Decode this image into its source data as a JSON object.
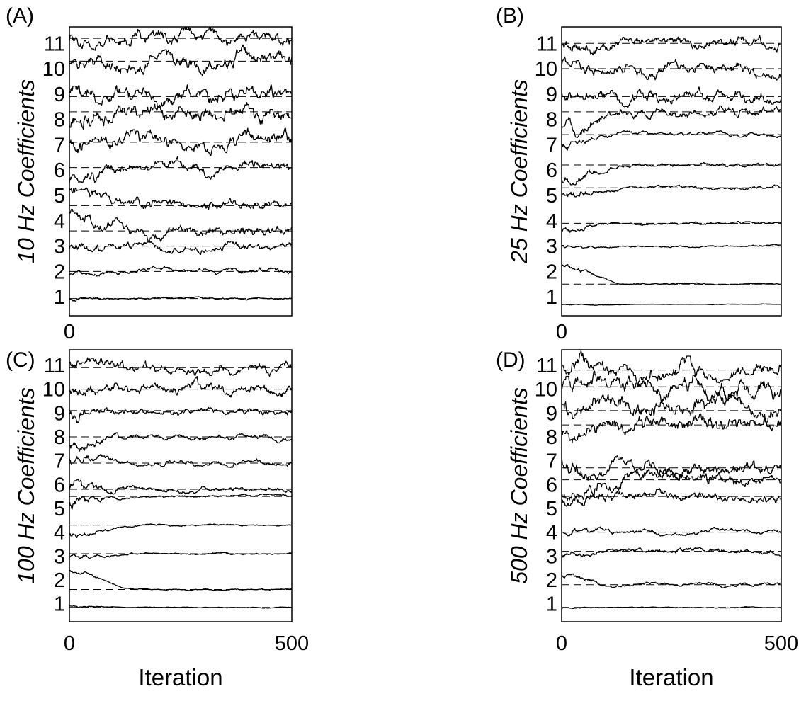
{
  "chart_data": [
    {
      "panel": "(A)",
      "type": "line",
      "ylabel": "10 Hz Coefficients",
      "xlabel": "",
      "xticks": [
        "0"
      ],
      "xlim": [
        0,
        500
      ],
      "yticks": [
        "1",
        "2",
        "3",
        "4",
        "5",
        "6",
        "7",
        "8",
        "9",
        "10",
        "11"
      ],
      "grid": false,
      "series": [
        {
          "label": "1",
          "ref": 0.93,
          "start": 0.9,
          "noise": 0.07,
          "eq_noise": 0.04
        },
        {
          "label": "2",
          "ref": 2.0,
          "start": 1.9,
          "noise": 0.12,
          "eq_noise": 0.1
        },
        {
          "label": "3",
          "ref": 3.0,
          "start": 2.9,
          "noise": 0.2,
          "eq_noise": 0.17
        },
        {
          "label": "4",
          "ref": 3.6,
          "start": 4.3,
          "noise": 0.28,
          "eq_noise": 0.24
        },
        {
          "label": "5",
          "ref": 4.6,
          "start": 5.4,
          "noise": 0.3,
          "eq_noise": 0.22
        },
        {
          "label": "6",
          "ref": 6.1,
          "start": 5.5,
          "noise": 0.35,
          "eq_noise": 0.25
        },
        {
          "label": "7",
          "ref": 7.1,
          "start": 7.0,
          "noise": 0.35,
          "eq_noise": 0.32
        },
        {
          "label": "8",
          "ref": 8.3,
          "start": 7.9,
          "noise": 0.4,
          "eq_noise": 0.35
        },
        {
          "label": "9",
          "ref": 8.9,
          "start": 9.1,
          "noise": 0.35,
          "eq_noise": 0.33
        },
        {
          "label": "10",
          "ref": 10.3,
          "start": 10.1,
          "noise": 0.35,
          "eq_noise": 0.32
        },
        {
          "label": "11",
          "ref": 11.2,
          "start": 11.1,
          "noise": 0.3,
          "eq_noise": 0.28
        }
      ]
    },
    {
      "panel": "(B)",
      "type": "line",
      "ylabel": "25 Hz Coefficients",
      "xlabel": "",
      "xticks": [
        "0"
      ],
      "xlim": [
        0,
        500
      ],
      "yticks": [
        "1",
        "2",
        "3",
        "4",
        "5",
        "6",
        "7",
        "8",
        "9",
        "10",
        "11"
      ],
      "grid": false,
      "series": [
        {
          "label": "1",
          "ref": 0.7,
          "start": 0.7,
          "noise": 0.03,
          "eq_noise": 0.01
        },
        {
          "label": "2",
          "ref": 1.5,
          "start": 2.2,
          "noise": 0.15,
          "eq_noise": 0.03
        },
        {
          "label": "3",
          "ref": 3.0,
          "start": 3.0,
          "noise": 0.1,
          "eq_noise": 0.04
        },
        {
          "label": "4",
          "ref": 3.9,
          "start": 3.6,
          "noise": 0.15,
          "eq_noise": 0.05
        },
        {
          "label": "5",
          "ref": 5.3,
          "start": 5.1,
          "noise": 0.25,
          "eq_noise": 0.07
        },
        {
          "label": "6",
          "ref": 6.2,
          "start": 5.6,
          "noise": 0.25,
          "eq_noise": 0.08
        },
        {
          "label": "7",
          "ref": 7.4,
          "start": 7.0,
          "noise": 0.2,
          "eq_noise": 0.08
        },
        {
          "label": "8",
          "ref": 8.3,
          "start": 7.7,
          "noise": 0.3,
          "eq_noise": 0.2
        },
        {
          "label": "9",
          "ref": 8.9,
          "start": 9.0,
          "noise": 0.3,
          "eq_noise": 0.25
        },
        {
          "label": "10",
          "ref": 10.0,
          "start": 10.0,
          "noise": 0.3,
          "eq_noise": 0.25
        },
        {
          "label": "11",
          "ref": 11.0,
          "start": 11.0,
          "noise": 0.3,
          "eq_noise": 0.25
        }
      ]
    },
    {
      "panel": "(C)",
      "type": "line",
      "ylabel": "100 Hz Coefficients",
      "xlabel": "Iteration",
      "xticks": [
        "0",
        "500"
      ],
      "xlim": [
        0,
        500
      ],
      "yticks": [
        "1",
        "2",
        "3",
        "4",
        "5",
        "6",
        "7",
        "8",
        "9",
        "10",
        "11"
      ],
      "grid": false,
      "series": [
        {
          "label": "1",
          "ref": 0.85,
          "start": 0.9,
          "noise": 0.04,
          "eq_noise": 0.02
        },
        {
          "label": "2",
          "ref": 1.6,
          "start": 2.4,
          "noise": 0.1,
          "eq_noise": 0.03
        },
        {
          "label": "3",
          "ref": 3.1,
          "start": 3.0,
          "noise": 0.12,
          "eq_noise": 0.04
        },
        {
          "label": "4",
          "ref": 4.3,
          "start": 3.9,
          "noise": 0.2,
          "eq_noise": 0.04
        },
        {
          "label": "5",
          "ref": 5.5,
          "start": 5.2,
          "noise": 0.3,
          "eq_noise": 0.05
        },
        {
          "label": "6",
          "ref": 5.8,
          "start": 5.9,
          "noise": 0.3,
          "eq_noise": 0.12
        },
        {
          "label": "7",
          "ref": 6.9,
          "start": 7.1,
          "noise": 0.25,
          "eq_noise": 0.12
        },
        {
          "label": "8",
          "ref": 8.0,
          "start": 7.6,
          "noise": 0.3,
          "eq_noise": 0.12
        },
        {
          "label": "9",
          "ref": 9.1,
          "start": 9.0,
          "noise": 0.3,
          "eq_noise": 0.15
        },
        {
          "label": "10",
          "ref": 10.0,
          "start": 10.0,
          "noise": 0.35,
          "eq_noise": 0.25
        },
        {
          "label": "11",
          "ref": 10.9,
          "start": 11.1,
          "noise": 0.3,
          "eq_noise": 0.25
        }
      ]
    },
    {
      "panel": "(D)",
      "type": "line",
      "ylabel": "500 Hz Coefficients",
      "xlabel": "Iteration",
      "xticks": [
        "0",
        "500"
      ],
      "xlim": [
        0,
        500
      ],
      "yticks": [
        "1",
        "2",
        "3",
        "4",
        "5",
        "6",
        "7",
        "8",
        "9",
        "10",
        "11"
      ],
      "grid": false,
      "series": [
        {
          "label": "1",
          "ref": 0.85,
          "start": 0.8,
          "noise": 0.04,
          "eq_noise": 0.02
        },
        {
          "label": "2",
          "ref": 1.8,
          "start": 2.2,
          "noise": 0.12,
          "eq_noise": 0.08
        },
        {
          "label": "3",
          "ref": 3.2,
          "start": 3.1,
          "noise": 0.15,
          "eq_noise": 0.12
        },
        {
          "label": "4",
          "ref": 4.0,
          "start": 4.0,
          "noise": 0.15,
          "eq_noise": 0.1
        },
        {
          "label": "5",
          "ref": 5.5,
          "start": 5.2,
          "noise": 0.35,
          "eq_noise": 0.22
        },
        {
          "label": "6",
          "ref": 6.2,
          "start": 5.7,
          "noise": 0.35,
          "eq_noise": 0.28
        },
        {
          "label": "7",
          "ref": 6.7,
          "start": 7.0,
          "noise": 0.4,
          "eq_noise": 0.3
        },
        {
          "label": "8",
          "ref": 8.5,
          "start": 8.0,
          "noise": 0.4,
          "eq_noise": 0.35
        },
        {
          "label": "9",
          "ref": 9.1,
          "start": 9.2,
          "noise": 0.45,
          "eq_noise": 0.42
        },
        {
          "label": "10",
          "ref": 10.1,
          "start": 10.0,
          "noise": 0.45,
          "eq_noise": 0.42
        },
        {
          "label": "11",
          "ref": 10.8,
          "start": 11.0,
          "noise": 0.4,
          "eq_noise": 0.38
        }
      ]
    }
  ],
  "colors": {
    "line": "#000000",
    "reference": "#000000",
    "background": "#ffffff"
  }
}
